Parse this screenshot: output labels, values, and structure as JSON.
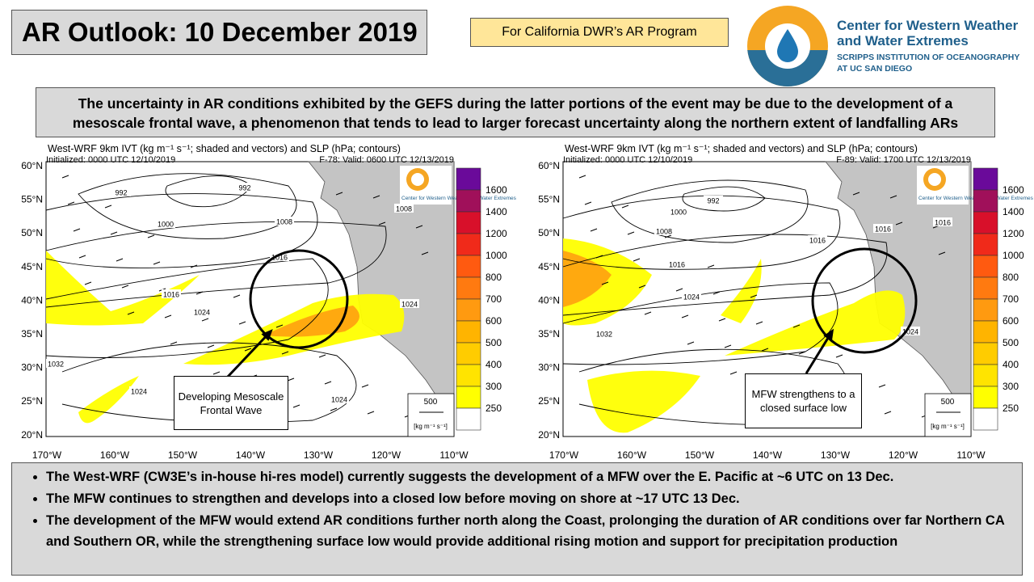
{
  "header": {
    "title": "AR Outlook: 10 December 2019",
    "program": "For California DWR’s AR Program",
    "logo": {
      "name_line1": "Center for Western Weather",
      "name_line2": "and Water Extremes",
      "sub_line1": "SCRIPPS INSTITUTION OF OCEANOGRAPHY",
      "sub_line2": "AT UC SAN DIEGO"
    }
  },
  "summary": "The uncertainty in AR conditions exhibited by the GEFS during the latter portions of the event may be due to the development of a mesoscale frontal wave, a phenomenon that tends to lead to larger forecast uncertainty along the northern extent of landfalling ARs",
  "maps": [
    {
      "title": "West-WRF 9km IVT (kg m⁻¹ s⁻¹; shaded and vectors) and SLP (hPa; contours)",
      "initialized": "Initialized: 0000 UTC 12/10/2019",
      "valid": "F-78: Valid: 0600 UTC 12/13/2019",
      "lat_labels": [
        "60°N",
        "55°N",
        "50°N",
        "45°N",
        "40°N",
        "35°N",
        "30°N",
        "25°N",
        "20°N"
      ],
      "lon_labels": [
        "170°W",
        "160°W",
        "150°W",
        "140°W",
        "130°W",
        "120°W",
        "110°W"
      ],
      "colorbar_labels": [
        1600,
        1400,
        1200,
        1000,
        800,
        700,
        600,
        500,
        400,
        300,
        250
      ],
      "colorbar_colors": [
        "#6a0a9a",
        "#a0105a",
        "#d8102a",
        "#f02a1a",
        "#ff5a10",
        "#ff7a10",
        "#ff9a10",
        "#ffb400",
        "#ffcc00",
        "#ffe400",
        "#ffff00",
        "#ffffff"
      ],
      "vector_scale": 500,
      "vector_unit": "[kg m⁻¹ s⁻¹]",
      "inset_logo": "Center for Western Weather and Water Extremes",
      "annotation": "Developing Mesoscale Frontal Wave",
      "contour_labels": [
        992,
        992,
        1000,
        1008,
        1008,
        1016,
        1016,
        1024,
        1032,
        1024,
        1024,
        1024
      ]
    },
    {
      "title": "West-WRF 9km IVT (kg m⁻¹ s⁻¹; shaded and vectors) and SLP (hPa; contours)",
      "initialized": "Initialized: 0000 UTC 12/10/2019",
      "valid": "F-89: Valid: 1700 UTC 12/13/2019",
      "lat_labels": [
        "60°N",
        "55°N",
        "50°N",
        "45°N",
        "40°N",
        "35°N",
        "30°N",
        "25°N",
        "20°N"
      ],
      "lon_labels": [
        "170°W",
        "160°W",
        "150°W",
        "140°W",
        "130°W",
        "120°W",
        "110°W"
      ],
      "colorbar_labels": [
        1600,
        1400,
        1200,
        1000,
        800,
        700,
        600,
        500,
        400,
        300,
        250
      ],
      "colorbar_colors": [
        "#6a0a9a",
        "#a0105a",
        "#d8102a",
        "#f02a1a",
        "#ff5a10",
        "#ff7a10",
        "#ff9a10",
        "#ffb400",
        "#ffcc00",
        "#ffe400",
        "#ffff00",
        "#ffffff"
      ],
      "vector_scale": 500,
      "vector_unit": "[kg m⁻¹ s⁻¹]",
      "inset_logo": "Center for Western Weather and Water Extremes",
      "annotation": "MFW strengthens to a closed surface low",
      "contour_labels": [
        992,
        1000,
        1008,
        1016,
        1024,
        1032,
        1016,
        1016,
        1024,
        1016
      ]
    }
  ],
  "bullets": [
    "The West-WRF (CW3E’s in-house hi-res model) currently suggests the development of a MFW over the E. Pacific at ~6 UTC on 13 Dec.",
    "The MFW continues to strengthen and develops into a closed low before moving on shore at ~17 UTC 13 Dec.",
    "The development of the MFW would extend AR conditions further north along the Coast, prolonging the duration of AR conditions over far Northern CA and Southern OR, while the strengthening surface low would provide additional rising motion and support for precipitation production"
  ]
}
